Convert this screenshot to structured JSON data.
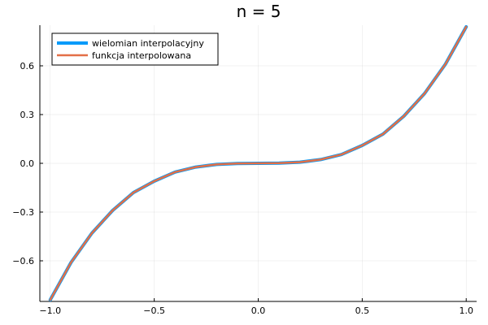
{
  "chart_data": {
    "type": "line",
    "title": "n = 5",
    "xlabel": "",
    "ylabel": "",
    "xlim": [
      -1.05,
      1.05
    ],
    "ylim": [
      -0.85,
      0.85
    ],
    "xticks": [
      -1.0,
      -0.5,
      0.0,
      0.5,
      1.0
    ],
    "xtick_labels": [
      "−1.0",
      "−0.5",
      "0.0",
      "0.5",
      "1.0"
    ],
    "yticks": [
      -0.6,
      -0.3,
      0.0,
      0.3,
      0.6
    ],
    "ytick_labels": [
      "−0.6",
      "−0.3",
      "0.0",
      "0.3",
      "0.6"
    ],
    "grid": true,
    "legend_position": "top-left",
    "x": [
      -1.0,
      -0.9,
      -0.8,
      -0.7,
      -0.6,
      -0.5,
      -0.4,
      -0.3,
      -0.2,
      -0.1,
      0.0,
      0.1,
      0.2,
      0.3,
      0.4,
      0.5,
      0.6,
      0.7,
      0.8,
      0.9,
      1.0
    ],
    "series": [
      {
        "name": "wielomian interpolacyjny",
        "color": "#009AFA",
        "values": [
          -0.84,
          -0.61,
          -0.43,
          -0.29,
          -0.18,
          -0.11,
          -0.054,
          -0.023,
          -0.007,
          -0.001,
          0.0,
          0.001,
          0.007,
          0.023,
          0.054,
          0.11,
          0.18,
          0.29,
          0.43,
          0.61,
          0.84
        ]
      },
      {
        "name": "funkcja interpolowana",
        "color": "#E36F47",
        "values": [
          -0.84,
          -0.61,
          -0.43,
          -0.29,
          -0.18,
          -0.11,
          -0.054,
          -0.023,
          -0.007,
          -0.001,
          0.0,
          0.001,
          0.007,
          0.023,
          0.054,
          0.11,
          0.18,
          0.29,
          0.43,
          0.61,
          0.84
        ]
      }
    ]
  }
}
